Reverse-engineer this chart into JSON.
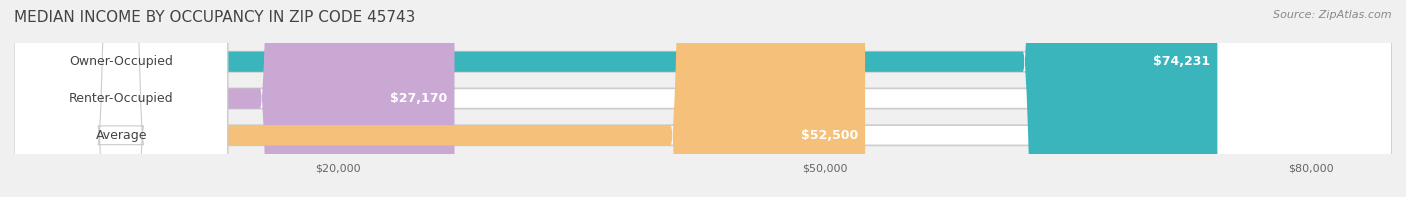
{
  "title": "MEDIAN INCOME BY OCCUPANCY IN ZIP CODE 45743",
  "source": "Source: ZipAtlas.com",
  "categories": [
    "Owner-Occupied",
    "Renter-Occupied",
    "Average"
  ],
  "values": [
    74231,
    27170,
    52500
  ],
  "bar_colors": [
    "#3ab5bc",
    "#c9a8d4",
    "#f5c07a"
  ],
  "label_texts": [
    "$74,231",
    "$27,170",
    "$52,500"
  ],
  "x_ticks": [
    20000,
    50000,
    80000
  ],
  "x_tick_labels": [
    "$20,000",
    "$50,000",
    "$80,000"
  ],
  "xlim": [
    0,
    85000
  ],
  "background_color": "#f0f0f0",
  "bar_bg_color": "#e8e8e8",
  "title_fontsize": 11,
  "label_fontsize": 9,
  "source_fontsize": 8
}
